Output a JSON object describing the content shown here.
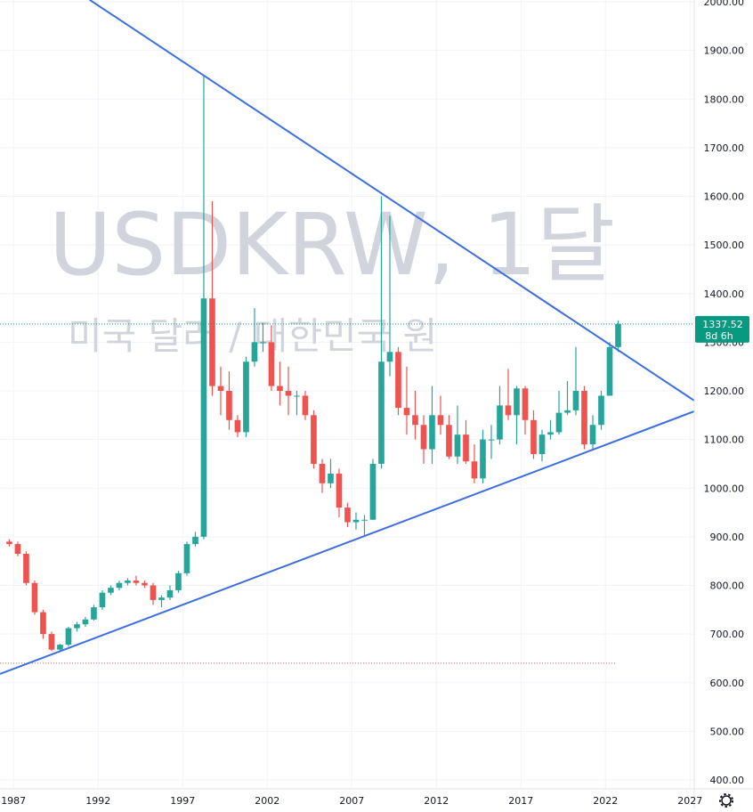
{
  "chart_data": {
    "type": "candlestick",
    "watermark_title": "USDKRW, 1달",
    "watermark_subtitle": "미국 달러 / 대한민국 원",
    "xlim": [
      1986.2,
      2027.25
    ],
    "xticks": [
      1987,
      1992,
      1997,
      2002,
      2007,
      2012,
      2017,
      2022,
      2027
    ],
    "ylim": [
      400,
      2000
    ],
    "yticks": [
      {
        "value": 400,
        "label": "400.00"
      },
      {
        "value": 500,
        "label": "500.00"
      },
      {
        "value": 600,
        "label": "600.00"
      },
      {
        "value": 700,
        "label": "700.00"
      },
      {
        "value": 800,
        "label": "800.00"
      },
      {
        "value": 900,
        "label": "900.00"
      },
      {
        "value": 1000,
        "label": "1000.00"
      },
      {
        "value": 1100,
        "label": "1100.00"
      },
      {
        "value": 1200,
        "label": "1200.00"
      },
      {
        "value": 1300,
        "label": "1300.00"
      },
      {
        "value": 1400,
        "label": "1400.00"
      },
      {
        "value": 1500,
        "label": "1500.00"
      },
      {
        "value": 1600,
        "label": "1600.00"
      },
      {
        "value": 1700,
        "label": "1700.00"
      },
      {
        "value": 1800,
        "label": "1800.00"
      },
      {
        "value": 1900,
        "label": "1900.00"
      },
      {
        "value": 2000,
        "label": "2000.00"
      }
    ],
    "grid": true,
    "up_color": "#26a69a",
    "down_color": "#ef5350",
    "candles": {
      "t": [
        1986.5,
        1987,
        1987.5,
        1988,
        1988.5,
        1989,
        1989.5,
        1990,
        1990.5,
        1991,
        1991.5,
        1992,
        1992.5,
        1993,
        1993.5,
        1994,
        1994.5,
        1995,
        1995.5,
        1996,
        1996.5,
        1997,
        1997.5,
        1998,
        1998.5,
        1999,
        1999.5,
        2000,
        2000.5,
        2001,
        2001.5,
        2002,
        2002.5,
        2003,
        2003.5,
        2004,
        2004.5,
        2005,
        2005.5,
        2006,
        2006.5,
        2007,
        2007.5,
        2008,
        2008.5,
        2009,
        2009.5,
        2010,
        2010.5,
        2011,
        2011.5,
        2012,
        2012.5,
        2013,
        2013.5,
        2014,
        2014.5,
        2015,
        2015.5,
        2016,
        2016.5,
        2017,
        2017.5,
        2018,
        2018.5,
        2019,
        2019.5,
        2020,
        2020.5,
        2021,
        2021.5,
        2022,
        2022.5
      ],
      "open": [
        890,
        885,
        865,
        805,
        745,
        700,
        668,
        678,
        712,
        720,
        730,
        755,
        785,
        795,
        805,
        810,
        805,
        800,
        770,
        775,
        790,
        825,
        885,
        900,
        1390,
        1210,
        1200,
        1140,
        1115,
        1260,
        1300,
        1300,
        1210,
        1200,
        1190,
        1190,
        1150,
        1050,
        1010,
        1030,
        960,
        930,
        935,
        935,
        1050,
        1260,
        1280,
        1165,
        1150,
        1130,
        1080,
        1150,
        1130,
        1065,
        1110,
        1055,
        1020,
        1100,
        1100,
        1170,
        1150,
        1205,
        1140,
        1070,
        1110,
        1115,
        1155,
        1160,
        1200,
        1090,
        1130,
        1190,
        1290
      ],
      "high": [
        895,
        890,
        870,
        810,
        750,
        705,
        680,
        715,
        725,
        735,
        760,
        790,
        800,
        810,
        815,
        820,
        810,
        805,
        780,
        800,
        830,
        890,
        910,
        1850,
        1590,
        1250,
        1240,
        1150,
        1270,
        1370,
        1340,
        1335,
        1260,
        1250,
        1200,
        1200,
        1160,
        1060,
        1060,
        1040,
        970,
        950,
        945,
        1060,
        1600,
        1560,
        1290,
        1250,
        1200,
        1150,
        1210,
        1190,
        1150,
        1170,
        1140,
        1090,
        1120,
        1130,
        1210,
        1245,
        1210,
        1210,
        1160,
        1120,
        1140,
        1200,
        1220,
        1290,
        1210,
        1150,
        1200,
        1300,
        1345
      ],
      "low": [
        880,
        860,
        800,
        740,
        690,
        665,
        665,
        675,
        705,
        715,
        728,
        750,
        780,
        790,
        800,
        800,
        795,
        760,
        755,
        770,
        785,
        820,
        880,
        895,
        1190,
        1150,
        1120,
        1105,
        1105,
        1250,
        1280,
        1200,
        1170,
        1150,
        1150,
        1140,
        1040,
        990,
        1000,
        940,
        920,
        915,
        900,
        935,
        1040,
        1230,
        1150,
        1110,
        1100,
        1050,
        1050,
        1110,
        1060,
        1050,
        1050,
        1010,
        1010,
        1060,
        1090,
        1140,
        1090,
        1110,
        1060,
        1055,
        1100,
        1110,
        1150,
        1150,
        1080,
        1080,
        1120,
        1190,
        1280
      ],
      "close": [
        885,
        865,
        805,
        745,
        700,
        668,
        678,
        712,
        720,
        730,
        755,
        785,
        795,
        805,
        810,
        805,
        800,
        770,
        775,
        790,
        825,
        885,
        900,
        1390,
        1210,
        1200,
        1140,
        1115,
        1260,
        1300,
        1300,
        1210,
        1200,
        1190,
        1190,
        1150,
        1050,
        1010,
        1030,
        960,
        930,
        935,
        935,
        1050,
        1260,
        1280,
        1165,
        1150,
        1130,
        1080,
        1150,
        1130,
        1065,
        1110,
        1055,
        1020,
        1100,
        1100,
        1170,
        1150,
        1205,
        1140,
        1070,
        1110,
        1115,
        1155,
        1160,
        1200,
        1090,
        1130,
        1190,
        1290,
        1337.52
      ]
    },
    "trend_lines": [
      {
        "color": "#3d6ee0",
        "x": [
          1991.5,
          2027.25
        ],
        "y": [
          2004,
          1180
        ]
      },
      {
        "color": "#3d6ee0",
        "x": [
          1986.2,
          2027.25
        ],
        "y": [
          618,
          1158
        ]
      }
    ],
    "low_line": 640,
    "last_price": 1337.52,
    "last_price_color": "#089981",
    "countdown": "8d 6h"
  }
}
